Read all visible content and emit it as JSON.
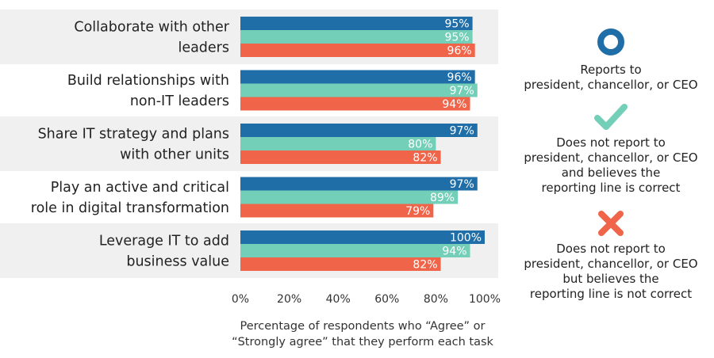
{
  "chart_data": {
    "type": "bar",
    "orientation": "horizontal",
    "categories": [
      "Collaborate with other\nleaders",
      "Build relationships with\nnon-IT leaders",
      "Share IT strategy and plans\nwith other units",
      "Play an active and critical\nrole in digital transformation",
      "Leverage IT to add\nbusiness value"
    ],
    "series": [
      {
        "name": "Reports to\npresident, chancellor, or CEO",
        "color": "#1f6ea8",
        "values": [
          95,
          96,
          97,
          97,
          100
        ]
      },
      {
        "name": "Does not report to\npresident, chancellor, or CEO\nand believes the\nreporting line is correct",
        "color": "#74cfb8",
        "values": [
          95,
          97,
          80,
          89,
          94
        ]
      },
      {
        "name": "Does not report to\npresident, chancellor, or CEO\nbut believes the\nreporting line is not correct",
        "color": "#f0654a",
        "values": [
          96,
          94,
          82,
          79,
          82
        ]
      }
    ],
    "value_suffix": "%",
    "xlim": [
      0,
      100
    ],
    "xticks": [
      "0%",
      "20%",
      "40%",
      "60%",
      "80%",
      "100%"
    ],
    "xlabel": "Percentage of respondents who “Agree” or\n“Strongly agree” that they perform each task",
    "legend_position": "right"
  },
  "legend": [
    {
      "icon": "circle-icon",
      "color": "#1f6ea8"
    },
    {
      "icon": "check-icon",
      "color": "#74cfb8"
    },
    {
      "icon": "x-icon",
      "color": "#f0654a"
    }
  ]
}
